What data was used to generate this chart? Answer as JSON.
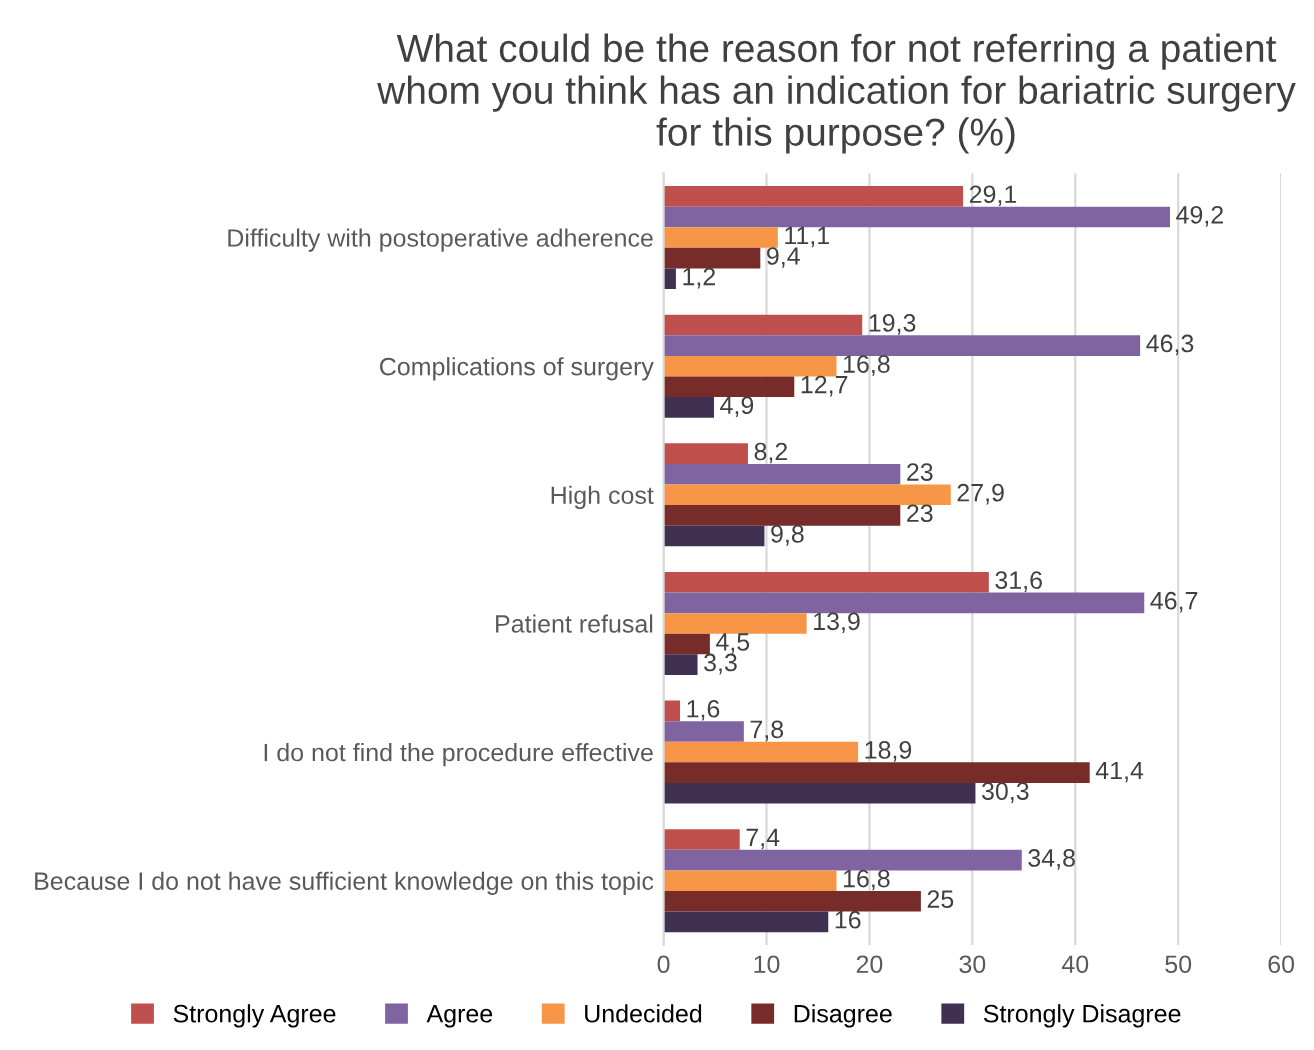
{
  "chart_data": {
    "type": "bar",
    "orientation": "horizontal",
    "title": "What could be the reason for not referring a patient whom you think has an indication for bariatric surgery for this purpose? (%)",
    "categories": [
      "Difficulty with postoperative adherence",
      "Complications of surgery",
      "High cost",
      "Patient refusal",
      "I do not find the procedure effective",
      "Because I do not have sufficient knowledge on this topic"
    ],
    "series": [
      {
        "name": "Strongly Agree",
        "color": "#c0504d",
        "values": [
          29.1,
          19.3,
          8.2,
          31.6,
          1.6,
          7.4
        ],
        "value_labels": [
          "29,1",
          "19,3",
          "8,2",
          "31,6",
          "1,6",
          "7,4"
        ]
      },
      {
        "name": "Agree",
        "color": "#8064a2",
        "values": [
          49.2,
          46.3,
          23,
          46.7,
          7.8,
          34.8
        ],
        "value_labels": [
          "49,2",
          "46,3",
          "23",
          "46,7",
          "7,8",
          "34,8"
        ]
      },
      {
        "name": "Undecided",
        "color": "#f79646",
        "values": [
          11.1,
          16.8,
          27.9,
          13.9,
          18.9,
          16.8
        ],
        "value_labels": [
          "11,1",
          "16,8",
          "27,9",
          "13,9",
          "18,9",
          "16,8"
        ]
      },
      {
        "name": "Disagree",
        "color": "#772c2a",
        "values": [
          9.4,
          12.7,
          23,
          4.5,
          41.4,
          25
        ],
        "value_labels": [
          "9,4",
          "12,7",
          "23",
          "4,5",
          "41,4",
          "25"
        ]
      },
      {
        "name": "Strongly Disagree",
        "color": "#403152",
        "values": [
          1.2,
          4.9,
          9.8,
          3.3,
          30.3,
          16
        ],
        "value_labels": [
          "1,2",
          "4,9",
          "9,8",
          "3,3",
          "30,3",
          "16"
        ]
      }
    ],
    "xlim": [
      0,
      60
    ],
    "xticks": [
      0,
      10,
      20,
      30,
      40,
      50,
      60
    ],
    "grid": "x",
    "legend": "bottom"
  }
}
